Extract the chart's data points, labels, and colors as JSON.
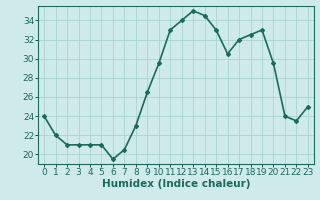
{
  "title": "",
  "xlabel": "Humidex (Indice chaleur)",
  "ylabel": "",
  "x": [
    0,
    1,
    2,
    3,
    4,
    5,
    6,
    7,
    8,
    9,
    10,
    11,
    12,
    13,
    14,
    15,
    16,
    17,
    18,
    19,
    20,
    21,
    22,
    23
  ],
  "y": [
    24,
    22,
    21,
    21,
    21,
    21,
    19.5,
    20.5,
    23,
    26.5,
    29.5,
    33,
    34,
    35,
    34.5,
    33,
    30.5,
    32,
    32.5,
    33,
    29.5,
    24,
    23.5,
    25
  ],
  "line_color": "#1a6b5a",
  "marker": "D",
  "marker_size": 2.0,
  "bg_color": "#ceeaea",
  "grid_color": "#aad4d4",
  "ylim": [
    19.0,
    35.5
  ],
  "yticks": [
    20,
    22,
    24,
    26,
    28,
    30,
    32,
    34
  ],
  "xlim": [
    -0.5,
    23.5
  ],
  "xticks": [
    0,
    1,
    2,
    3,
    4,
    5,
    6,
    7,
    8,
    9,
    10,
    11,
    12,
    13,
    14,
    15,
    16,
    17,
    18,
    19,
    20,
    21,
    22,
    23
  ],
  "xlabel_fontsize": 7.5,
  "tick_fontsize": 6.5,
  "line_width": 1.2
}
